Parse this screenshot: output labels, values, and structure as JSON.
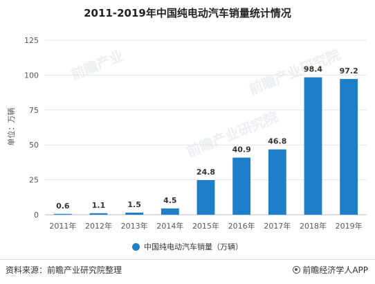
{
  "header": {
    "title": "2011-2019年中国纯电动汽车销量统计情况"
  },
  "watermarks": [
    "前瞻产业",
    "前瞻产业研究院",
    "前瞻产业研究院"
  ],
  "legend": {
    "label": "中国纯电动汽车销量（万辆）",
    "color": "#1f7ec8"
  },
  "footer": {
    "source": "资料来源：前瞻产业研究院整理",
    "brand": "前瞻经济学人APP",
    "brand_icon": "camera-lens-icon"
  },
  "chart_data": {
    "type": "bar",
    "categories": [
      "2011年",
      "2012年",
      "2013年",
      "2014年",
      "2015年",
      "2016年",
      "2017年",
      "2018年",
      "2019年"
    ],
    "series": [
      {
        "values": [
          0.6,
          1.1,
          1.5,
          4.5,
          24.8,
          40.9,
          46.8,
          98.4,
          97.2
        ]
      }
    ],
    "data_labels": [
      "0.6",
      "1.1",
      "1.5",
      "4.5",
      "24.8",
      "40.9",
      "46.8",
      "98.4",
      "97.2"
    ],
    "ylabel": "单位：万辆",
    "ylim": [
      0,
      125
    ],
    "yticks": [
      0,
      25,
      50,
      75,
      100,
      125
    ],
    "grid": true,
    "color": "#1f7ec8",
    "legend_position": "bottom"
  }
}
